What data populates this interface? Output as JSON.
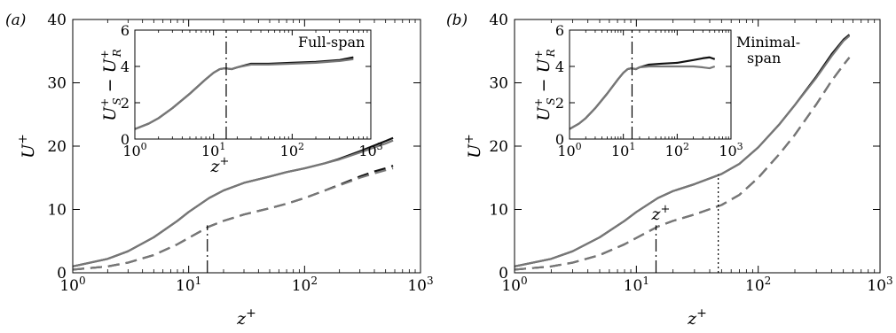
{
  "chart_data": [
    {
      "type": "line",
      "panel": "a",
      "panel_label": "(a)",
      "annotation": "Full-span",
      "xlabel": "z+",
      "ylabel": "U+",
      "xscale": "log",
      "xlim": [
        1,
        1000
      ],
      "ylim": [
        0,
        40
      ],
      "xticks": [
        1,
        10,
        100,
        1000
      ],
      "xtick_labels": [
        "10^0",
        "10^1",
        "10^2",
        "10^3"
      ],
      "yticks": [
        0,
        10,
        20,
        30,
        40
      ],
      "ytick_labels": [
        "0",
        "10",
        "20",
        "30",
        "40"
      ],
      "vlines": [
        {
          "x": 14.5,
          "style": "dash-dot",
          "y_range": [
            0,
            7.5
          ]
        }
      ],
      "series": [
        {
          "color": "#111111",
          "style": "solid",
          "x": [
            1,
            2,
            3,
            5,
            8,
            10,
            15,
            20,
            30,
            50,
            70,
            100,
            150,
            200,
            300,
            400,
            500,
            580
          ],
          "y": [
            1.0,
            2.2,
            3.4,
            5.6,
            8.2,
            9.6,
            11.8,
            13.0,
            14.2,
            15.2,
            15.9,
            16.5,
            17.3,
            18.0,
            19.2,
            20.1,
            20.8,
            21.3
          ]
        },
        {
          "color": "#777777",
          "style": "solid",
          "x": [
            1,
            2,
            3,
            5,
            8,
            10,
            15,
            20,
            30,
            50,
            70,
            100,
            150,
            200,
            300,
            400,
            500,
            580
          ],
          "y": [
            1.0,
            2.2,
            3.4,
            5.6,
            8.2,
            9.6,
            11.8,
            13.0,
            14.2,
            15.2,
            15.9,
            16.5,
            17.3,
            17.9,
            19.0,
            19.8,
            20.4,
            20.9
          ]
        },
        {
          "color": "#111111",
          "style": "dashed",
          "x": [
            1,
            2,
            3,
            5,
            8,
            10,
            15,
            20,
            30,
            50,
            70,
            100,
            150,
            200,
            300,
            400,
            500,
            580
          ],
          "y": [
            0.5,
            1.0,
            1.6,
            2.8,
            4.5,
            5.5,
            7.3,
            8.2,
            9.2,
            10.2,
            10.9,
            11.8,
            13.0,
            13.9,
            15.2,
            16.0,
            16.5,
            16.9
          ]
        },
        {
          "color": "#777777",
          "style": "dashed",
          "x": [
            1,
            2,
            3,
            5,
            8,
            10,
            15,
            20,
            30,
            50,
            70,
            100,
            150,
            200,
            300,
            400,
            500,
            580
          ],
          "y": [
            0.5,
            1.0,
            1.6,
            2.8,
            4.5,
            5.5,
            7.3,
            8.2,
            9.2,
            10.2,
            10.9,
            11.8,
            13.0,
            13.8,
            15.0,
            15.7,
            16.2,
            16.5
          ]
        }
      ],
      "inset": {
        "xlabel": "z+",
        "ylabel": "U+_S − U+_R",
        "xscale": "log",
        "xlim": [
          1,
          1000
        ],
        "ylim": [
          0,
          6
        ],
        "xticks": [
          1,
          10,
          100,
          1000
        ],
        "xtick_labels": [
          "10^0",
          "10^1",
          "10^2",
          "10^3"
        ],
        "yticks": [
          0,
          2,
          4,
          6
        ],
        "ytick_labels": [
          "0",
          "2",
          "4",
          "6"
        ],
        "vlines": [
          {
            "x": 14.5,
            "style": "dash-dot"
          }
        ],
        "series": [
          {
            "color": "#111111",
            "style": "solid",
            "x": [
              1,
              1.5,
              2,
              3,
              5,
              8,
              10,
              12,
              14,
              17,
              20,
              30,
              50,
              100,
              200,
              400,
              600
            ],
            "y": [
              0.55,
              0.85,
              1.15,
              1.7,
              2.5,
              3.3,
              3.65,
              3.85,
              3.9,
              3.85,
              3.95,
              4.15,
              4.15,
              4.2,
              4.25,
              4.35,
              4.5
            ]
          },
          {
            "color": "#777777",
            "style": "solid",
            "x": [
              1,
              1.5,
              2,
              3,
              5,
              8,
              10,
              12,
              14,
              17,
              20,
              30,
              50,
              100,
              200,
              400,
              600
            ],
            "y": [
              0.55,
              0.85,
              1.15,
              1.7,
              2.5,
              3.3,
              3.65,
              3.85,
              3.9,
              3.85,
              3.95,
              4.1,
              4.1,
              4.15,
              4.2,
              4.3,
              4.4
            ]
          }
        ]
      }
    },
    {
      "type": "line",
      "panel": "b",
      "panel_label": "(b)",
      "annotation": [
        "Minimal-",
        "span"
      ],
      "xlabel": "z+",
      "ylabel": "U+",
      "xscale": "log",
      "xlim": [
        1,
        1000
      ],
      "ylim": [
        0,
        40
      ],
      "xticks": [
        1,
        10,
        100,
        1000
      ],
      "xtick_labels": [
        "10^0",
        "10^1",
        "10^2",
        "10^3"
      ],
      "yticks": [
        0,
        10,
        20,
        30,
        40
      ],
      "ytick_labels": [
        "0",
        "10",
        "20",
        "30",
        "40"
      ],
      "vlines": [
        {
          "x": 14.5,
          "style": "dash-dot",
          "y_range": [
            0,
            7.5
          ]
        },
        {
          "x": 47,
          "style": "dotted",
          "y_range": [
            0,
            15.5
          ]
        }
      ],
      "series": [
        {
          "color": "#111111",
          "style": "solid",
          "x": [
            1,
            2,
            3,
            5,
            8,
            10,
            15,
            20,
            30,
            50,
            70,
            100,
            150,
            200,
            300,
            400,
            500,
            560
          ],
          "y": [
            1.0,
            2.2,
            3.4,
            5.6,
            8.2,
            9.6,
            11.8,
            12.9,
            14.0,
            15.6,
            17.2,
            19.8,
            23.5,
            26.5,
            31.0,
            34.5,
            36.8,
            37.6
          ]
        },
        {
          "color": "#777777",
          "style": "solid",
          "x": [
            1,
            2,
            3,
            5,
            8,
            10,
            15,
            20,
            30,
            50,
            70,
            100,
            150,
            200,
            300,
            400,
            500,
            560
          ],
          "y": [
            1.0,
            2.2,
            3.4,
            5.6,
            8.2,
            9.6,
            11.8,
            12.9,
            14.0,
            15.6,
            17.2,
            19.8,
            23.5,
            26.5,
            30.8,
            34.2,
            36.6,
            37.4
          ]
        },
        {
          "color": "#111111",
          "style": "dashed",
          "x": [
            1,
            2,
            3,
            5,
            8,
            10,
            15,
            20,
            30,
            50,
            70,
            100,
            150,
            200,
            300,
            400,
            500,
            560
          ],
          "y": [
            0.5,
            1.0,
            1.6,
            2.8,
            4.5,
            5.5,
            7.3,
            8.2,
            9.2,
            10.7,
            12.3,
            15.0,
            18.8,
            21.8,
            26.6,
            30.3,
            32.8,
            34.0
          ]
        },
        {
          "color": "#777777",
          "style": "dashed",
          "x": [
            1,
            2,
            3,
            5,
            8,
            10,
            15,
            20,
            30,
            50,
            70,
            100,
            150,
            200,
            300,
            400,
            500,
            560
          ],
          "y": [
            0.5,
            1.0,
            1.6,
            2.8,
            4.5,
            5.5,
            7.3,
            8.2,
            9.2,
            10.7,
            12.3,
            15.0,
            18.8,
            21.8,
            26.6,
            30.3,
            32.8,
            34.0
          ]
        }
      ],
      "inset": {
        "xlabel": "z+",
        "ylabel": "U+_S − U+_R",
        "xscale": "log",
        "xlim": [
          1,
          1000
        ],
        "ylim": [
          0,
          6
        ],
        "xticks": [
          1,
          10,
          100,
          1000
        ],
        "xtick_labels": [
          "10^0",
          "10^1",
          "10^2",
          "10^3"
        ],
        "yticks": [
          0,
          2,
          4,
          6
        ],
        "ytick_labels": [
          "0",
          "2",
          "4",
          "6"
        ],
        "vlines": [
          {
            "x": 14.5,
            "style": "dash-dot"
          }
        ],
        "series": [
          {
            "color": "#111111",
            "style": "solid",
            "x": [
              1,
              1.5,
              2,
              3,
              5,
              8,
              10,
              12,
              14,
              17,
              20,
              30,
              50,
              100,
              200,
              300,
              400,
              500
            ],
            "y": [
              0.55,
              0.85,
              1.15,
              1.7,
              2.5,
              3.3,
              3.65,
              3.85,
              3.9,
              3.85,
              3.95,
              4.1,
              4.15,
              4.2,
              4.35,
              4.45,
              4.5,
              4.4
            ]
          },
          {
            "color": "#777777",
            "style": "solid",
            "x": [
              1,
              1.5,
              2,
              3,
              5,
              8,
              10,
              12,
              14,
              17,
              20,
              30,
              50,
              100,
              200,
              300,
              400,
              500
            ],
            "y": [
              0.55,
              0.85,
              1.15,
              1.7,
              2.5,
              3.3,
              3.65,
              3.85,
              3.9,
              3.85,
              3.95,
              4.0,
              4.0,
              4.0,
              4.0,
              3.95,
              3.9,
              4.0
            ]
          }
        ]
      }
    }
  ]
}
